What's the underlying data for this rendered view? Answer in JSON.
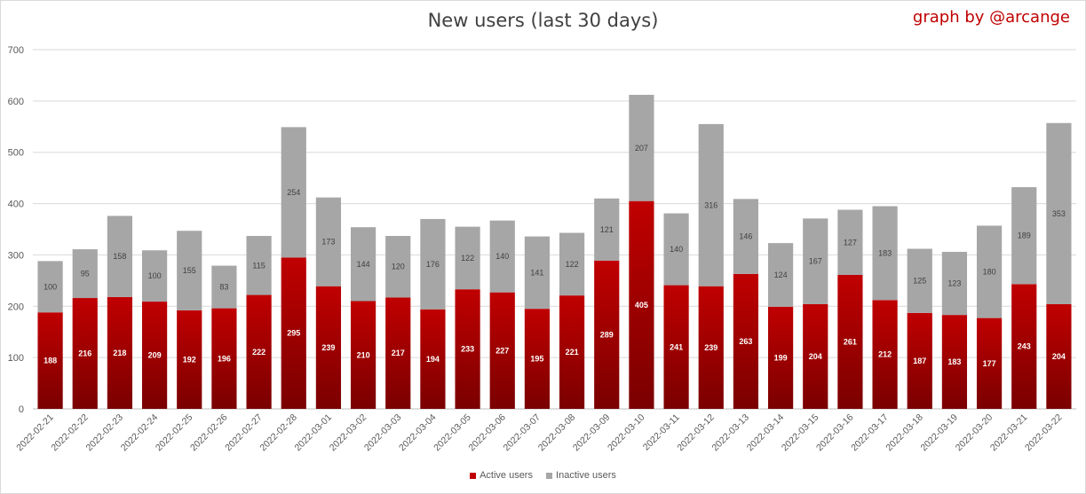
{
  "title": "New users (last 30 days)",
  "credit": "graph by @arcange",
  "colors": {
    "active": "#c00000",
    "active_dark": "#7a0000",
    "inactive": "#a6a6a6",
    "grid": "#d9d9d9"
  },
  "chart_data": {
    "type": "bar",
    "stacked": true,
    "title": "New users (last 30 days)",
    "xlabel": "",
    "ylabel": "",
    "ylim": [
      0,
      700
    ],
    "yticks": [
      0,
      100,
      200,
      300,
      400,
      500,
      600,
      700
    ],
    "grid": true,
    "legend_position": "bottom",
    "categories": [
      "2022-02-21",
      "2022-02-22",
      "2022-02-23",
      "2022-02-24",
      "2022-02-25",
      "2022-02-26",
      "2022-02-27",
      "2022-02-28",
      "2022-03-01",
      "2022-03-02",
      "2022-03-03",
      "2022-03-04",
      "2022-03-05",
      "2022-03-06",
      "2022-03-07",
      "2022-03-08",
      "2022-03-09",
      "2022-03-10",
      "2022-03-11",
      "2022-03-12",
      "2022-03-13",
      "2022-03-14",
      "2022-03-15",
      "2022-03-16",
      "2022-03-17",
      "2022-03-18",
      "2022-03-19",
      "2022-03-20",
      "2022-03-21",
      "2022-03-22"
    ],
    "series": [
      {
        "name": "Active users",
        "values": [
          188,
          216,
          218,
          209,
          192,
          196,
          222,
          295,
          239,
          210,
          217,
          194,
          233,
          227,
          195,
          221,
          289,
          405,
          241,
          239,
          263,
          199,
          204,
          261,
          212,
          187,
          183,
          177,
          243,
          204
        ]
      },
      {
        "name": "Inactive users",
        "values": [
          100,
          95,
          158,
          100,
          155,
          83,
          115,
          254,
          173,
          144,
          120,
          176,
          122,
          140,
          141,
          122,
          121,
          207,
          140,
          316,
          146,
          124,
          167,
          127,
          183,
          125,
          123,
          180,
          189,
          353
        ]
      }
    ]
  }
}
